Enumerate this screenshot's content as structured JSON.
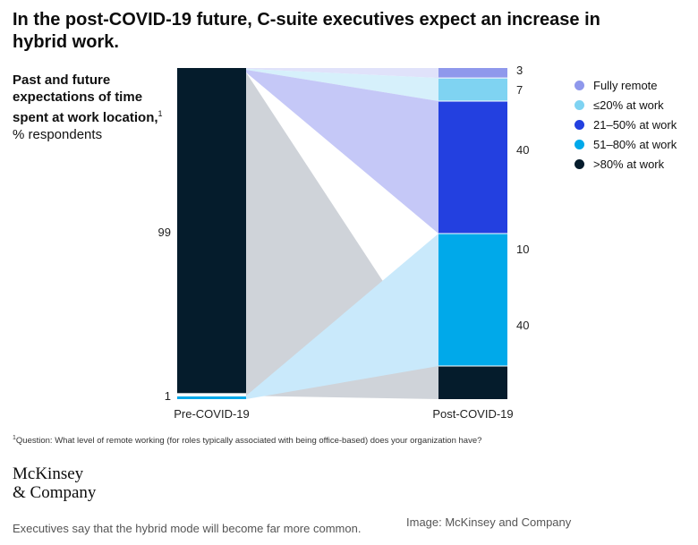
{
  "title": "In the post-COVID-19 future, C-suite executives expect an increase in hybrid work.",
  "subtitle": {
    "bold": "Past and future expectations of time spent at work location,",
    "footnote_mark": "1",
    "rest": " % respondents"
  },
  "colors": {
    "fully_remote": "#8f98ec",
    "le20": "#7fd3f2",
    "p21_50": "#2340e0",
    "p51_80": "#00a9ea",
    "gt80": "#051c2c",
    "flow_dark": "#cfd3d9",
    "flow_light": "#c9e9fb",
    "flow_purple": "#c5c8f7",
    "flow_lightblue": "#d6f0fb",
    "flow_lavender": "#e0e2fa"
  },
  "chart_data": {
    "type": "sankey",
    "categories": [
      "Pre-COVID-19",
      "Post-COVID-19"
    ],
    "series": [
      {
        "name": "Fully remote",
        "values": [
          0,
          3
        ]
      },
      {
        "name": "≤20% at work",
        "values": [
          0,
          7
        ]
      },
      {
        "name": "21–50% at work",
        "values": [
          0,
          40
        ]
      },
      {
        "name": "51–80% at work",
        "values": [
          1,
          40
        ]
      },
      {
        "name": ">80% at work",
        "values": [
          99,
          10
        ]
      }
    ],
    "pre_labels": [
      "99",
      "1"
    ],
    "post_labels": [
      "3",
      "7",
      "40",
      "10",
      "40"
    ],
    "legend_position": "right"
  },
  "legend": [
    {
      "label": "Fully remote",
      "color": "#8f98ec"
    },
    {
      "label": "≤20% at work",
      "color": "#7fd3f2"
    },
    {
      "label": "21–50% at work",
      "color": "#2340e0"
    },
    {
      "label": "51–80% at work",
      "color": "#00a9ea"
    },
    {
      "label": ">80% at work",
      "color": "#051c2c"
    }
  ],
  "footnote": {
    "mark": "1",
    "text": "Question: What level of remote working (for roles typically associated with being office-based) does your organization have?"
  },
  "logo": {
    "line1": "McKinsey",
    "line2": "& Company"
  },
  "caption": "Executives say that the hybrid mode will become far more common.",
  "credit": "Image: McKinsey and Company"
}
